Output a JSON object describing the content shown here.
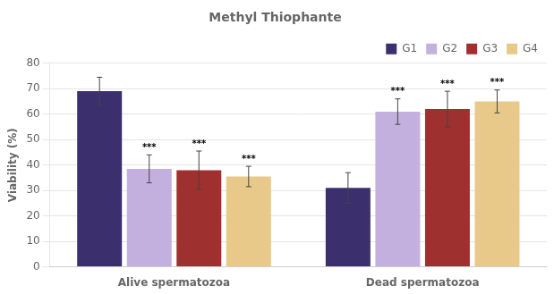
{
  "chart_data": {
    "type": "bar",
    "title": "Methyl Thiophante",
    "ylabel": "Viability (%)",
    "categories": [
      "Alive spermatozoa",
      "Dead spermatozoa"
    ],
    "series": [
      {
        "name": "G1",
        "color": "#3b2f6e",
        "values": [
          69,
          31
        ],
        "errors": [
          5.5,
          6
        ]
      },
      {
        "name": "G2",
        "color": "#c4b0df",
        "values": [
          38.5,
          61
        ],
        "errors": [
          5.5,
          5
        ]
      },
      {
        "name": "G3",
        "color": "#9e3030",
        "values": [
          38,
          62
        ],
        "errors": [
          7.5,
          7
        ]
      },
      {
        "name": "G4",
        "color": "#e8c98a",
        "values": [
          35.5,
          65
        ],
        "errors": [
          4,
          4.5
        ]
      }
    ],
    "annotations": [
      {
        "text": "***",
        "series": "G2",
        "category": "Alive spermatozoa"
      },
      {
        "text": "***",
        "series": "G3",
        "category": "Alive spermatozoa"
      },
      {
        "text": "***",
        "series": "G4",
        "category": "Alive spermatozoa"
      },
      {
        "text": "***",
        "series": "G2",
        "category": "Dead spermatozoa"
      },
      {
        "text": "***",
        "series": "G3",
        "category": "Dead spermatozoa"
      },
      {
        "text": "***",
        "series": "G4",
        "category": "Dead spermatozoa"
      }
    ],
    "ylim": [
      0,
      80
    ],
    "yticks": [
      0,
      10,
      20,
      30,
      40,
      50,
      60,
      70,
      80
    ],
    "grid": true,
    "legend": "upper right"
  }
}
